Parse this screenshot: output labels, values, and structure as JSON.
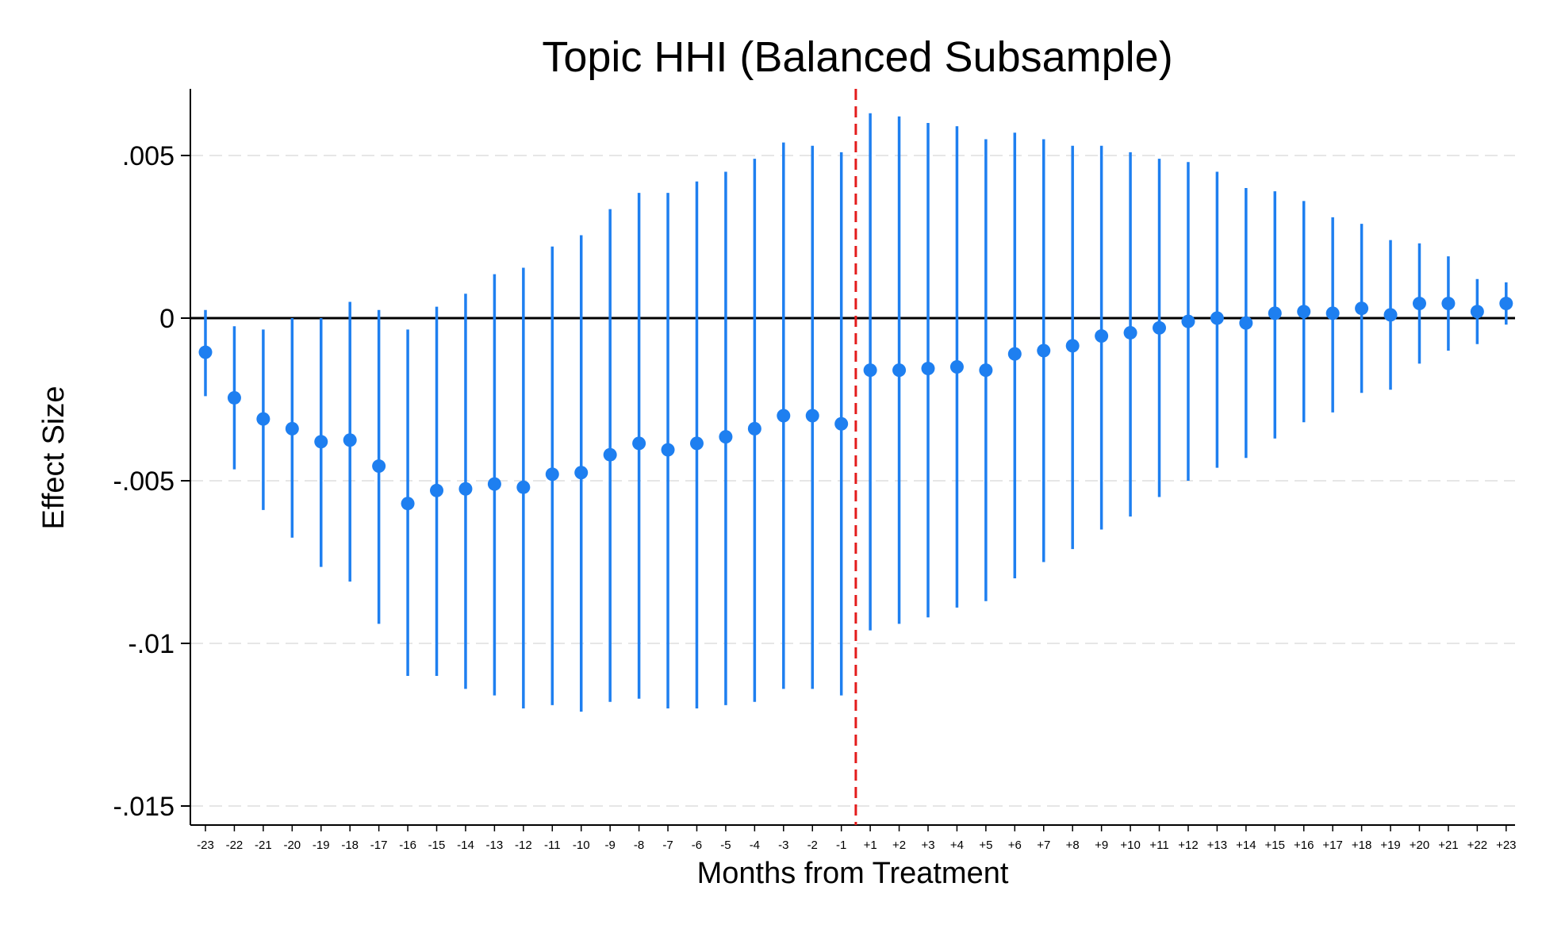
{
  "chart_data": {
    "type": "scatter",
    "title": "Topic HHI (Balanced Subsample)",
    "xlabel": "Months from Treatment",
    "ylabel": "Effect Size",
    "ylim": [
      -0.0155,
      0.007
    ],
    "y_ticks": [
      0.005,
      0,
      -0.005,
      -0.01,
      -0.015
    ],
    "y_tick_labels": [
      ".005",
      "0",
      "-.005",
      "-.01",
      "-.015"
    ],
    "categories": [
      "-23",
      "-22",
      "-21",
      "-20",
      "-19",
      "-18",
      "-17",
      "-16",
      "-15",
      "-14",
      "-13",
      "-12",
      "-11",
      "-10",
      "-9",
      "-8",
      "-7",
      "-6",
      "-5",
      "-4",
      "-3",
      "-2",
      "-1",
      "+1",
      "+2",
      "+3",
      "+4",
      "+5",
      "+6",
      "+7",
      "+8",
      "+9",
      "+10",
      "+11",
      "+12",
      "+13",
      "+14",
      "+15",
      "+16",
      "+17",
      "+18",
      "+19",
      "+20",
      "+21",
      "+22",
      "+23"
    ],
    "series": [
      {
        "point": [
          -0.00105,
          -0.00245,
          -0.0031,
          -0.0034,
          -0.0038,
          -0.00375,
          -0.00455,
          -0.0057,
          -0.0053,
          -0.00525,
          -0.0051,
          -0.0052,
          -0.0048,
          -0.00475,
          -0.0042,
          -0.00385,
          -0.00405,
          -0.00385,
          -0.00365,
          -0.0034,
          -0.003,
          -0.003,
          -0.00325,
          -0.0016,
          -0.0016,
          -0.00155,
          -0.0015,
          -0.0016,
          -0.0011,
          -0.001,
          -0.00085,
          -0.00055,
          -0.00045,
          -0.0003,
          -0.0001,
          0.0,
          -0.00015,
          0.00015,
          0.0002,
          0.00015,
          0.0003,
          0.0001,
          0.00045,
          0.00045,
          0.0002,
          0.00045
        ],
        "lower": [
          -0.0024,
          -0.00465,
          -0.0059,
          -0.00675,
          -0.00765,
          -0.0081,
          -0.0094,
          -0.011,
          -0.011,
          -0.0114,
          -0.0116,
          -0.012,
          -0.0119,
          -0.0121,
          -0.0118,
          -0.0117,
          -0.012,
          -0.012,
          -0.0119,
          -0.0118,
          -0.0114,
          -0.0114,
          -0.0116,
          -0.0096,
          -0.0094,
          -0.0092,
          -0.0089,
          -0.0087,
          -0.008,
          -0.0075,
          -0.0071,
          -0.0065,
          -0.0061,
          -0.0055,
          -0.005,
          -0.0046,
          -0.0043,
          -0.0037,
          -0.0032,
          -0.0029,
          -0.0023,
          -0.0022,
          -0.0014,
          -0.001,
          -0.0008,
          -0.0002
        ],
        "upper": [
          0.00025,
          -0.00025,
          -0.00035,
          0.0,
          0.0,
          0.0005,
          0.00025,
          -0.00035,
          0.00035,
          0.00075,
          0.00135,
          0.00155,
          0.0022,
          0.00255,
          0.00335,
          0.00385,
          0.00385,
          0.0042,
          0.0045,
          0.0049,
          0.0054,
          0.0053,
          0.0051,
          0.0063,
          0.0062,
          0.006,
          0.0059,
          0.0055,
          0.0057,
          0.0055,
          0.0053,
          0.0053,
          0.0051,
          0.0049,
          0.0048,
          0.0045,
          0.004,
          0.0039,
          0.0036,
          0.0031,
          0.0029,
          0.0024,
          0.0023,
          0.0019,
          0.0012,
          0.0011
        ]
      }
    ],
    "treatment_line": "between -1 and +1",
    "grid": true,
    "colors": {
      "series": "#1e7ff0",
      "treatment": "#e31b1b",
      "zero_line": "#000000",
      "grid": "#e6e6e6"
    }
  }
}
